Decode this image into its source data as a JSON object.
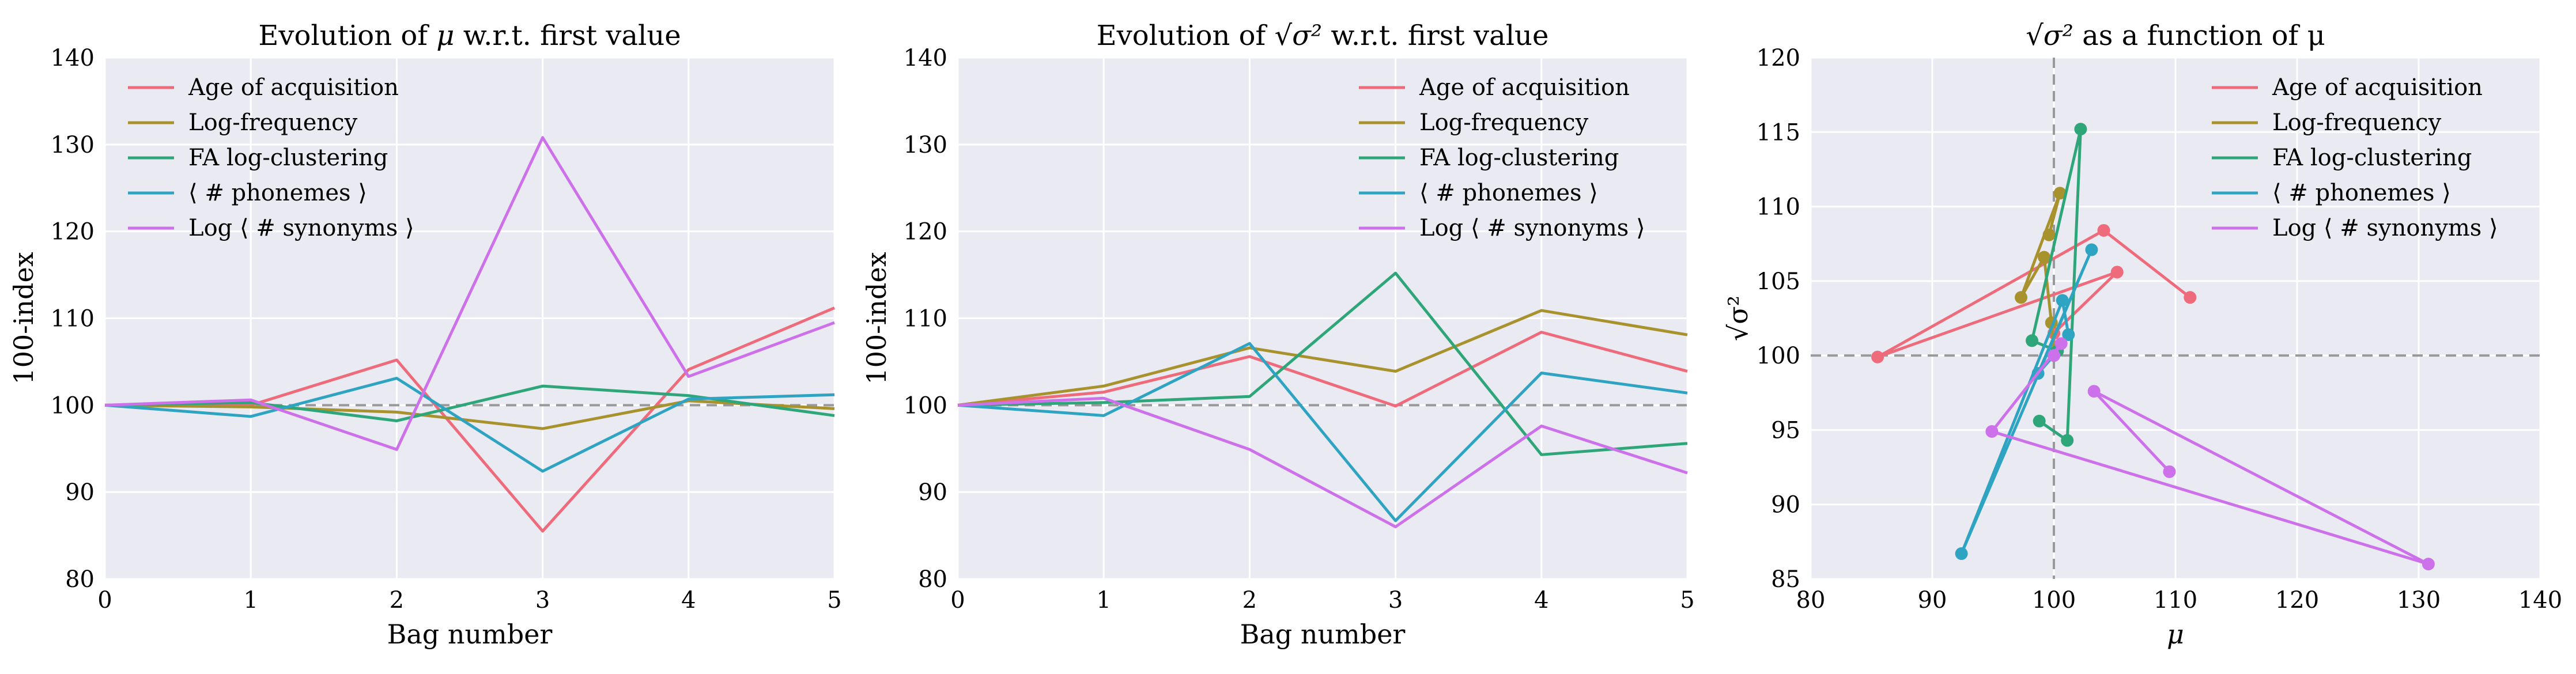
{
  "colors": {
    "background_plot": "#eaeaf2",
    "grid": "#ffffff",
    "reference_line": "#999999",
    "series": [
      "#ee6b7c",
      "#a8922e",
      "#2ea679",
      "#2fa4c2",
      "#cc71ea"
    ]
  },
  "chart_data": [
    {
      "type": "line",
      "title_parts": {
        "prefix": "Evolution of ",
        "symbol": "μ",
        "suffix": " w.r.t. first value"
      },
      "xlabel": "Bag number",
      "ylabel": "100-index",
      "xlim": [
        0,
        5
      ],
      "ylim": [
        80,
        140
      ],
      "xticks": [
        0,
        1,
        2,
        3,
        4,
        5
      ],
      "yticks": [
        80,
        90,
        100,
        110,
        120,
        130,
        140
      ],
      "grid": true,
      "reference_line": {
        "axis": "y",
        "value": 100,
        "style": "dashed"
      },
      "legend_position": "top-left",
      "x": [
        0,
        1,
        2,
        3,
        4,
        5
      ],
      "series": [
        {
          "name": "Age of acquisition",
          "values": [
            100,
            100,
            105.2,
            85.5,
            104.1,
            111.2
          ]
        },
        {
          "name": "Log-frequency",
          "values": [
            100,
            99.8,
            99.2,
            97.3,
            100.5,
            99.6
          ]
        },
        {
          "name": "FA log-clustering",
          "values": [
            100,
            100.3,
            98.2,
            102.2,
            101.1,
            98.8
          ]
        },
        {
          "name": "⟨ # phonemes ⟩",
          "values": [
            100,
            98.7,
            103.1,
            92.4,
            100.7,
            101.2
          ]
        },
        {
          "name": "Log ⟨ # synonyms ⟩",
          "values": [
            100,
            100.6,
            94.9,
            130.8,
            103.3,
            109.5
          ]
        }
      ]
    },
    {
      "type": "line",
      "title_parts": {
        "prefix": "Evolution of ",
        "symbol": "√σ²",
        "suffix": " w.r.t. first value"
      },
      "xlabel": "Bag number",
      "ylabel": "100-index",
      "xlim": [
        0,
        5
      ],
      "ylim": [
        80,
        140
      ],
      "xticks": [
        0,
        1,
        2,
        3,
        4,
        5
      ],
      "yticks": [
        80,
        90,
        100,
        110,
        120,
        130,
        140
      ],
      "grid": true,
      "reference_line": {
        "axis": "y",
        "value": 100,
        "style": "dashed"
      },
      "legend_position": "top-right",
      "x": [
        0,
        1,
        2,
        3,
        4,
        5
      ],
      "series": [
        {
          "name": "Age of acquisition",
          "values": [
            100,
            101.5,
            105.6,
            99.9,
            108.4,
            103.9
          ]
        },
        {
          "name": "Log-frequency",
          "values": [
            100,
            102.2,
            106.6,
            103.9,
            110.9,
            108.1
          ]
        },
        {
          "name": "FA log-clustering",
          "values": [
            100,
            100.3,
            101.0,
            115.2,
            94.3,
            95.6
          ]
        },
        {
          "name": "⟨ # phonemes ⟩",
          "values": [
            100,
            98.8,
            107.1,
            86.7,
            103.7,
            101.4
          ]
        },
        {
          "name": "Log ⟨ # synonyms ⟩",
          "values": [
            100,
            100.8,
            94.9,
            86.0,
            97.6,
            92.2
          ]
        }
      ]
    },
    {
      "type": "scatter",
      "connected": true,
      "title_parts": {
        "prefix": "",
        "symbol": "√σ²",
        "suffix": " as a function of μ"
      },
      "xlabel": "μ",
      "ylabel": "√σ²",
      "xlim": [
        80,
        140
      ],
      "ylim": [
        85,
        120
      ],
      "xticks": [
        80,
        90,
        100,
        110,
        120,
        130,
        140
      ],
      "yticks": [
        85,
        90,
        95,
        100,
        105,
        110,
        115,
        120
      ],
      "grid": true,
      "reference_lines": [
        {
          "axis": "x",
          "value": 100,
          "style": "dashed"
        },
        {
          "axis": "y",
          "value": 100,
          "style": "dashed"
        }
      ],
      "legend_position": "top-right",
      "series": [
        {
          "name": "Age of acquisition",
          "x": [
            100,
            100,
            105.2,
            85.5,
            104.1,
            111.2
          ],
          "y": [
            100,
            101.5,
            105.6,
            99.9,
            108.4,
            103.9
          ]
        },
        {
          "name": "Log-frequency",
          "x": [
            100,
            99.8,
            99.2,
            97.3,
            100.5,
            99.6
          ],
          "y": [
            100,
            102.2,
            106.6,
            103.9,
            110.9,
            108.1
          ]
        },
        {
          "name": "FA log-clustering",
          "x": [
            100,
            100.3,
            98.2,
            102.2,
            101.1,
            98.8
          ],
          "y": [
            100,
            100.3,
            101.0,
            115.2,
            94.3,
            95.6
          ]
        },
        {
          "name": "⟨ # phonemes ⟩",
          "x": [
            100,
            98.7,
            103.1,
            92.4,
            100.7,
            101.2
          ],
          "y": [
            100,
            98.8,
            107.1,
            86.7,
            103.7,
            101.4
          ]
        },
        {
          "name": "Log ⟨ # synonyms ⟩",
          "x": [
            100,
            100.6,
            94.9,
            130.8,
            103.3,
            109.5
          ],
          "y": [
            100,
            100.8,
            94.9,
            86.0,
            97.6,
            92.2
          ]
        }
      ]
    }
  ]
}
